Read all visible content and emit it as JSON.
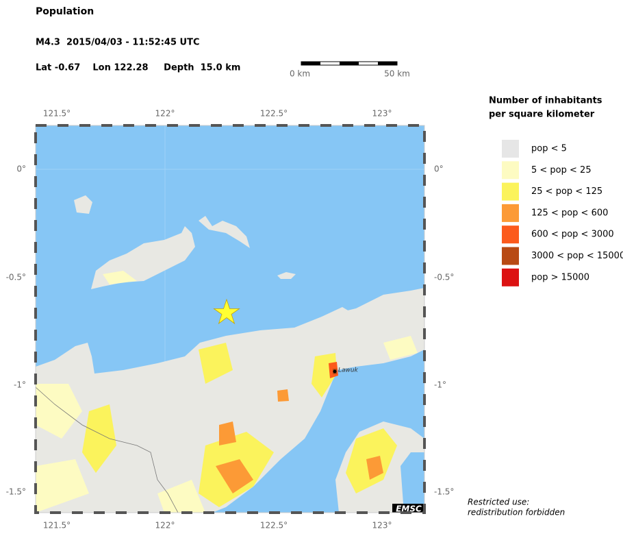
{
  "header": {
    "title": "Population",
    "event": "M4.3  2015/04/03 - 11:52:45 UTC",
    "location": "Lat -0.67    Lon 122.28     Depth  15.0 km"
  },
  "scale_bar": {
    "labels": [
      "0 km",
      "50 km"
    ]
  },
  "map": {
    "lon_labels": [
      "121.5°",
      "122°",
      "122.5°",
      "123°"
    ],
    "lat_labels": [
      "0°",
      "-0.5°",
      "-1°",
      "-1.5°"
    ],
    "places": [
      "Lawuk"
    ],
    "credit": "EMSC"
  },
  "legend": {
    "title_lines": [
      "Number of inhabitants",
      "per square kilometer"
    ],
    "items": [
      {
        "label": "pop < 5",
        "color": "#e6e6e6"
      },
      {
        "label": "5 < pop < 25",
        "color": "#fdfbc2"
      },
      {
        "label": "25 < pop < 125",
        "color": "#fbf35c"
      },
      {
        "label": "125 < pop < 600",
        "color": "#fc9a36"
      },
      {
        "label": "600 < pop < 3000",
        "color": "#fc5a1c"
      },
      {
        "label": "3000 < pop < 15000",
        "color": "#b84a14"
      },
      {
        "label": "pop > 15000",
        "color": "#dc1212"
      }
    ]
  },
  "notice": [
    "Restricted use:",
    "redistribution forbidden"
  ]
}
